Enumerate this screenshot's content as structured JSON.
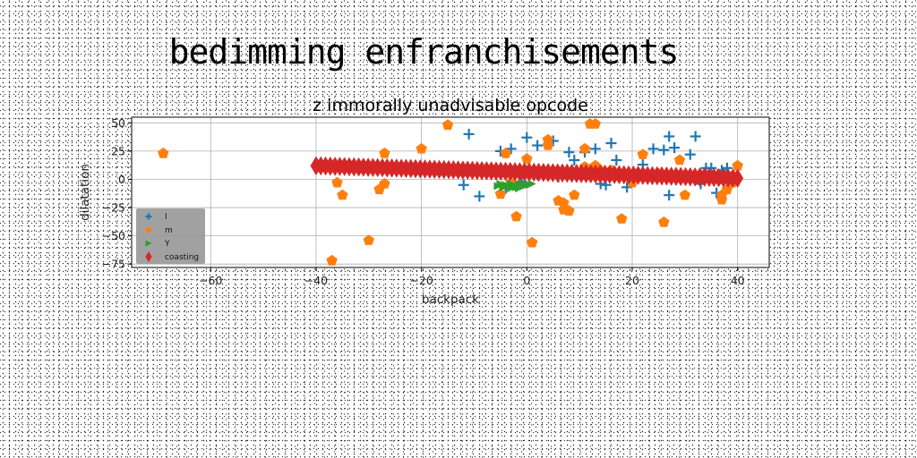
{
  "figure": {
    "suptitle": "bedimming enfranchisements"
  },
  "chart_data": {
    "type": "scatter",
    "title": "z immorally unadvisable opcode",
    "xlabel": "backpack",
    "ylabel": "dilatation",
    "xlim": [
      -75,
      46
    ],
    "ylim": [
      -78,
      55
    ],
    "xticks": [
      -60,
      -40,
      -20,
      0,
      20,
      40
    ],
    "yticks": [
      50,
      25,
      0,
      -25,
      -50,
      -75
    ],
    "grid": true,
    "legend_position": "lower-left",
    "series": [
      {
        "name": "l",
        "marker": "plus",
        "color": "#1f77b4",
        "points": [
          [
            -11,
            40
          ],
          [
            -5,
            25
          ],
          [
            -3,
            27
          ],
          [
            -4,
            -8
          ],
          [
            -9,
            -15
          ],
          [
            -12,
            -5
          ],
          [
            0,
            37
          ],
          [
            2,
            30
          ],
          [
            5,
            34
          ],
          [
            6,
            2
          ],
          [
            8,
            24
          ],
          [
            9,
            17
          ],
          [
            11,
            24
          ],
          [
            13,
            27
          ],
          [
            14,
            -4
          ],
          [
            15,
            -5
          ],
          [
            16,
            32
          ],
          [
            17,
            17
          ],
          [
            19,
            -7
          ],
          [
            20,
            2
          ],
          [
            22,
            13
          ],
          [
            24,
            27
          ],
          [
            26,
            26
          ],
          [
            27,
            38
          ],
          [
            27,
            -14
          ],
          [
            28,
            28
          ],
          [
            31,
            22
          ],
          [
            32,
            38
          ],
          [
            33,
            -4
          ],
          [
            34,
            10
          ],
          [
            35,
            10
          ],
          [
            36,
            -12
          ],
          [
            37,
            8
          ],
          [
            38,
            10
          ],
          [
            -1,
            -2
          ],
          [
            2,
            4
          ]
        ]
      },
      {
        "name": "m",
        "marker": "pentagon",
        "color": "#ff7f0e",
        "points": [
          [
            -69,
            23
          ],
          [
            -37,
            -72
          ],
          [
            -36,
            -3
          ],
          [
            -35,
            -14
          ],
          [
            -30,
            -54
          ],
          [
            -28,
            -9
          ],
          [
            -27,
            -4
          ],
          [
            -27,
            23
          ],
          [
            -20,
            27
          ],
          [
            -15,
            48
          ],
          [
            -5,
            -13
          ],
          [
            -4,
            23
          ],
          [
            -3,
            -3
          ],
          [
            -2,
            -33
          ],
          [
            0,
            18
          ],
          [
            1,
            -56
          ],
          [
            2,
            7
          ],
          [
            4,
            30
          ],
          [
            4,
            35
          ],
          [
            6,
            6
          ],
          [
            6,
            -19
          ],
          [
            7,
            -21
          ],
          [
            7,
            -27
          ],
          [
            8,
            -28
          ],
          [
            9,
            -14
          ],
          [
            11,
            11
          ],
          [
            11,
            27
          ],
          [
            12,
            49
          ],
          [
            13,
            49
          ],
          [
            13,
            12
          ],
          [
            14,
            8
          ],
          [
            16,
            8
          ],
          [
            18,
            -35
          ],
          [
            22,
            22
          ],
          [
            22,
            4
          ],
          [
            26,
            -38
          ],
          [
            29,
            17
          ],
          [
            30,
            -14
          ],
          [
            33,
            4
          ],
          [
            37,
            -14
          ],
          [
            37,
            -18
          ],
          [
            38,
            -9
          ],
          [
            39,
            -3
          ],
          [
            40,
            12
          ],
          [
            20,
            -3
          ],
          [
            25,
            5
          ]
        ]
      },
      {
        "name": "Y",
        "marker": "triangle-right",
        "color": "#2ca02c",
        "points": [
          [
            -5.5,
            -6
          ],
          [
            -5,
            -4
          ],
          [
            -4.5,
            -7
          ],
          [
            -4,
            -5
          ],
          [
            -3.5,
            -6
          ],
          [
            -3,
            -4
          ],
          [
            -2.5,
            -5
          ],
          [
            -2,
            -7
          ],
          [
            -1.5,
            -5
          ],
          [
            -1,
            -4
          ],
          [
            -0.5,
            -6
          ],
          [
            0,
            -5
          ],
          [
            0.5,
            -5
          ],
          [
            1,
            -4
          ],
          [
            -3,
            -8
          ],
          [
            -1.5,
            -8
          ]
        ]
      },
      {
        "name": "coasting",
        "marker": "diamond",
        "color": "#d62728",
        "line": {
          "x_start": -40,
          "x_end": 40,
          "n": 90,
          "y_start": 12,
          "y_end": 1
        }
      }
    ]
  },
  "colors": {
    "plot_bg": "#ffffff",
    "grid": "#b0b0b0",
    "legend_bg": "#999999"
  }
}
